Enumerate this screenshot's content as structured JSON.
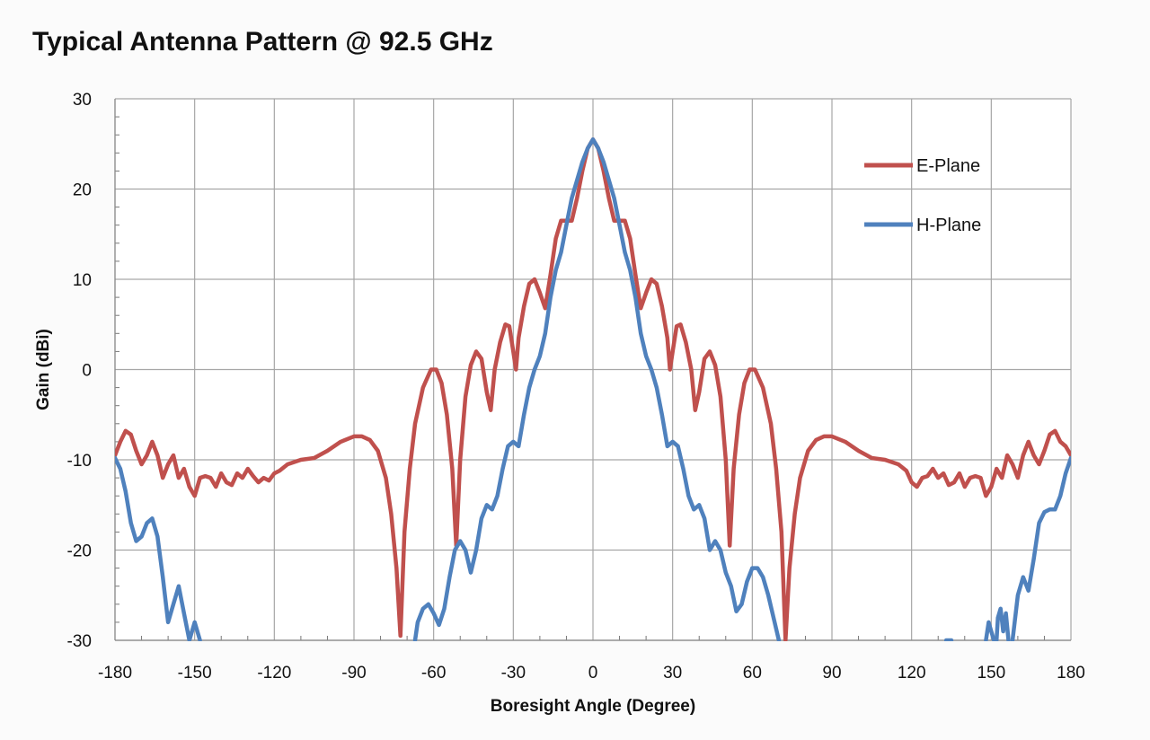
{
  "chart_data": {
    "type": "line",
    "title": "Typical Antenna Pattern @ 92.5 GHz",
    "xlabel": "Boresight Angle (Degree)",
    "ylabel": "Gain (dBi)",
    "xlim": [
      -180,
      180
    ],
    "ylim": [
      -30,
      30
    ],
    "xticks": [
      -180,
      -150,
      -120,
      -90,
      -60,
      -30,
      0,
      30,
      60,
      90,
      120,
      150,
      180
    ],
    "yticks": [
      -30,
      -20,
      -10,
      0,
      10,
      20,
      30
    ],
    "xtick_labels": [
      "-180",
      "-150",
      "-120",
      "-90",
      "-60",
      "-30",
      "0",
      "30",
      "60",
      "90",
      "120",
      "150",
      "180"
    ],
    "ytick_labels": [
      "-30",
      "-20",
      "-10",
      "0",
      "10",
      "20",
      "30"
    ],
    "grid": true,
    "legend_position": "top-right",
    "series": [
      {
        "name": "E-Plane",
        "color": "#c0504d",
        "points": [
          [
            -180,
            -9.5
          ],
          [
            -178,
            -8
          ],
          [
            -176,
            -6.8
          ],
          [
            -174,
            -7.2
          ],
          [
            -172,
            -9
          ],
          [
            -170,
            -10.5
          ],
          [
            -168,
            -9.5
          ],
          [
            -166,
            -8
          ],
          [
            -164,
            -9.5
          ],
          [
            -162,
            -12
          ],
          [
            -160,
            -10.5
          ],
          [
            -158,
            -9.5
          ],
          [
            -156,
            -12
          ],
          [
            -154,
            -11
          ],
          [
            -152,
            -13
          ],
          [
            -150,
            -14
          ],
          [
            -148,
            -12
          ],
          [
            -146,
            -11.8
          ],
          [
            -144,
            -12
          ],
          [
            -142,
            -13
          ],
          [
            -140,
            -11.5
          ],
          [
            -138,
            -12.5
          ],
          [
            -136,
            -12.8
          ],
          [
            -134,
            -11.5
          ],
          [
            -132,
            -12
          ],
          [
            -130,
            -11
          ],
          [
            -128,
            -11.8
          ],
          [
            -126,
            -12.5
          ],
          [
            -124,
            -12
          ],
          [
            -122,
            -12.3
          ],
          [
            -120,
            -11.5
          ],
          [
            -118,
            -11.2
          ],
          [
            -115,
            -10.5
          ],
          [
            -112,
            -10.2
          ],
          [
            -110,
            -10
          ],
          [
            -105,
            -9.8
          ],
          [
            -100,
            -9
          ],
          [
            -95,
            -8
          ],
          [
            -90,
            -7.4
          ],
          [
            -87,
            -7.4
          ],
          [
            -84,
            -7.8
          ],
          [
            -81,
            -9
          ],
          [
            -78,
            -12
          ],
          [
            -76,
            -16
          ],
          [
            -74,
            -22
          ],
          [
            -72.5,
            -29.5
          ],
          [
            -71,
            -18
          ],
          [
            -69,
            -11
          ],
          [
            -67,
            -6
          ],
          [
            -64,
            -2
          ],
          [
            -61,
            0
          ],
          [
            -59,
            0
          ],
          [
            -57,
            -1.5
          ],
          [
            -55,
            -5
          ],
          [
            -53,
            -11
          ],
          [
            -51.5,
            -19.5
          ],
          [
            -50,
            -10
          ],
          [
            -48,
            -3
          ],
          [
            -46,
            0.5
          ],
          [
            -44,
            2
          ],
          [
            -42,
            1.2
          ],
          [
            -40,
            -2.5
          ],
          [
            -38.5,
            -4.5
          ],
          [
            -37,
            0
          ],
          [
            -35,
            3
          ],
          [
            -33,
            5
          ],
          [
            -31.5,
            4.8
          ],
          [
            -30,
            2
          ],
          [
            -29,
            0
          ],
          [
            -28,
            3.5
          ],
          [
            -26,
            7
          ],
          [
            -24,
            9.5
          ],
          [
            -22,
            10
          ],
          [
            -20,
            8.5
          ],
          [
            -18,
            6.8
          ],
          [
            -16,
            10.5
          ],
          [
            -14,
            14.5
          ],
          [
            -12,
            16.5
          ],
          [
            -10,
            16.5
          ],
          [
            -8,
            16.5
          ],
          [
            -6,
            19
          ],
          [
            -4,
            22
          ],
          [
            -2,
            24.5
          ],
          [
            0,
            25.5
          ],
          [
            2,
            24.5
          ],
          [
            4,
            22
          ],
          [
            6,
            19
          ],
          [
            8,
            16.5
          ],
          [
            10,
            16.5
          ],
          [
            12,
            16.5
          ],
          [
            14,
            14.5
          ],
          [
            16,
            10.5
          ],
          [
            18,
            6.8
          ],
          [
            20,
            8.5
          ],
          [
            22,
            10
          ],
          [
            24,
            9.5
          ],
          [
            26,
            7
          ],
          [
            28,
            3.5
          ],
          [
            29,
            0
          ],
          [
            30,
            2
          ],
          [
            31.5,
            4.8
          ],
          [
            33,
            5
          ],
          [
            35,
            3
          ],
          [
            37,
            0
          ],
          [
            38.5,
            -4.5
          ],
          [
            40,
            -2.5
          ],
          [
            42,
            1.2
          ],
          [
            44,
            2
          ],
          [
            46,
            0.5
          ],
          [
            48,
            -3
          ],
          [
            50,
            -10
          ],
          [
            51.5,
            -19.5
          ],
          [
            53,
            -11
          ],
          [
            55,
            -5
          ],
          [
            57,
            -1.5
          ],
          [
            59,
            0
          ],
          [
            61,
            0
          ],
          [
            64,
            -2
          ],
          [
            67,
            -6
          ],
          [
            69,
            -11
          ],
          [
            71,
            -18
          ],
          [
            72.5,
            -30
          ],
          [
            74,
            -22
          ],
          [
            76,
            -16
          ],
          [
            78,
            -12
          ],
          [
            81,
            -9
          ],
          [
            84,
            -7.8
          ],
          [
            87,
            -7.4
          ],
          [
            90,
            -7.4
          ],
          [
            95,
            -8
          ],
          [
            100,
            -9
          ],
          [
            105,
            -9.8
          ],
          [
            110,
            -10
          ],
          [
            112,
            -10.2
          ],
          [
            115,
            -10.5
          ],
          [
            118,
            -11.2
          ],
          [
            120,
            -12.5
          ],
          [
            122,
            -13
          ],
          [
            124,
            -12
          ],
          [
            126,
            -11.8
          ],
          [
            128,
            -11
          ],
          [
            130,
            -12
          ],
          [
            132,
            -11.5
          ],
          [
            134,
            -12.8
          ],
          [
            136,
            -12.5
          ],
          [
            138,
            -11.5
          ],
          [
            140,
            -13
          ],
          [
            142,
            -12
          ],
          [
            144,
            -11.8
          ],
          [
            146,
            -12
          ],
          [
            148,
            -14
          ],
          [
            150,
            -13
          ],
          [
            152,
            -11
          ],
          [
            154,
            -12
          ],
          [
            156,
            -9.5
          ],
          [
            158,
            -10.5
          ],
          [
            160,
            -12
          ],
          [
            162,
            -9.5
          ],
          [
            164,
            -8
          ],
          [
            166,
            -9.5
          ],
          [
            168,
            -10.5
          ],
          [
            170,
            -9
          ],
          [
            172,
            -7.2
          ],
          [
            174,
            -6.8
          ],
          [
            176,
            -8
          ],
          [
            178,
            -8.5
          ],
          [
            180,
            -9.5
          ]
        ]
      },
      {
        "name": "H-Plane",
        "color": "#4f81bd",
        "segments": [
          [
            [
              -180,
              -9.8
            ],
            [
              -178,
              -11
            ],
            [
              -176,
              -13.5
            ],
            [
              -174,
              -17
            ],
            [
              -172,
              -19
            ],
            [
              -170,
              -18.5
            ],
            [
              -168,
              -17
            ],
            [
              -166,
              -16.5
            ],
            [
              -164,
              -18.5
            ],
            [
              -162,
              -23
            ],
            [
              -160,
              -28
            ],
            [
              -158,
              -26
            ],
            [
              -156,
              -24
            ],
            [
              -154,
              -27
            ],
            [
              -152,
              -30
            ],
            [
              -150,
              -28
            ],
            [
              -148,
              -30
            ]
          ],
          [
            [
              -67,
              -30
            ],
            [
              -66,
              -28
            ],
            [
              -64,
              -26.5
            ],
            [
              -62,
              -26
            ],
            [
              -60,
              -27
            ],
            [
              -58,
              -28.3
            ],
            [
              -56,
              -26.5
            ],
            [
              -54,
              -23
            ],
            [
              -52,
              -20
            ],
            [
              -50,
              -19
            ],
            [
              -48,
              -20
            ],
            [
              -46,
              -22.5
            ],
            [
              -44,
              -20
            ],
            [
              -42,
              -16.5
            ],
            [
              -40,
              -15
            ],
            [
              -38,
              -15.5
            ],
            [
              -36,
              -14
            ],
            [
              -34,
              -11
            ],
            [
              -32,
              -8.5
            ],
            [
              -30,
              -8
            ],
            [
              -28,
              -8.5
            ],
            [
              -26,
              -5
            ],
            [
              -24,
              -2
            ],
            [
              -22,
              0
            ],
            [
              -20,
              1.5
            ],
            [
              -18,
              4
            ],
            [
              -16,
              8
            ],
            [
              -14,
              11
            ],
            [
              -12,
              13
            ],
            [
              -10,
              16
            ],
            [
              -8,
              19
            ],
            [
              -6,
              21
            ],
            [
              -4,
              23
            ],
            [
              -2,
              24.5
            ],
            [
              0,
              25.5
            ],
            [
              2,
              24.5
            ],
            [
              4,
              23
            ],
            [
              6,
              21
            ],
            [
              8,
              19
            ],
            [
              10,
              16
            ],
            [
              12,
              13
            ],
            [
              14,
              11
            ],
            [
              16,
              8
            ],
            [
              18,
              4
            ],
            [
              20,
              1.5
            ],
            [
              22,
              0
            ],
            [
              24,
              -2
            ],
            [
              26,
              -5
            ],
            [
              28,
              -8.5
            ],
            [
              30,
              -8
            ],
            [
              32,
              -8.5
            ],
            [
              34,
              -11
            ],
            [
              36,
              -14
            ],
            [
              38,
              -15.5
            ],
            [
              40,
              -15
            ],
            [
              42,
              -16.5
            ],
            [
              44,
              -20
            ],
            [
              46,
              -19
            ],
            [
              48,
              -20
            ],
            [
              50,
              -22.5
            ],
            [
              52,
              -24
            ],
            [
              54,
              -26.8
            ],
            [
              56,
              -26
            ],
            [
              58,
              -23.5
            ],
            [
              60,
              -22
            ],
            [
              62,
              -22
            ],
            [
              64,
              -23
            ],
            [
              66,
              -25
            ],
            [
              68,
              -27.5
            ],
            [
              70,
              -30
            ]
          ],
          [
            [
              133,
              -30
            ],
            [
              135,
              -30
            ]
          ],
          [
            [
              148,
              -30
            ],
            [
              149,
              -28
            ],
            [
              150,
              -29
            ],
            [
              151,
              -30
            ]
          ],
          [
            [
              152,
              -30
            ],
            [
              152.5,
              -27.5
            ],
            [
              153.5,
              -26.5
            ],
            [
              154.5,
              -29
            ],
            [
              155.5,
              -27
            ],
            [
              156.5,
              -30
            ]
          ],
          [
            [
              158,
              -30
            ],
            [
              160,
              -25
            ],
            [
              162,
              -23
            ],
            [
              164,
              -24.5
            ],
            [
              166,
              -21
            ],
            [
              168,
              -17
            ],
            [
              170,
              -15.8
            ],
            [
              172,
              -15.5
            ],
            [
              174,
              -15.5
            ],
            [
              176,
              -14
            ],
            [
              178,
              -11.5
            ],
            [
              180,
              -9.8
            ]
          ]
        ]
      }
    ]
  }
}
